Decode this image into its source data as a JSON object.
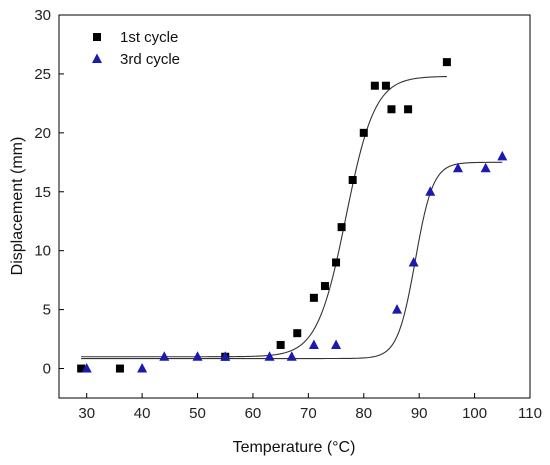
{
  "chart_data": {
    "type": "scatter",
    "title": "",
    "xlabel": "Temperature (°C)",
    "ylabel": "Displacement (mm)",
    "xlim": [
      25,
      110
    ],
    "ylim": [
      -2.5,
      30
    ],
    "xticks": [
      30,
      40,
      50,
      60,
      70,
      80,
      90,
      100,
      110
    ],
    "yticks": [
      0,
      5,
      10,
      15,
      20,
      25,
      30
    ],
    "grid": false,
    "legend_position": "top-left",
    "series": [
      {
        "name": "1st cycle",
        "marker": "square",
        "color": "#000000",
        "points": [
          [
            29,
            0
          ],
          [
            36,
            0
          ],
          [
            55,
            1
          ],
          [
            65,
            2
          ],
          [
            68,
            3
          ],
          [
            71,
            6
          ],
          [
            73,
            7
          ],
          [
            75,
            9
          ],
          [
            76,
            12
          ],
          [
            78,
            16
          ],
          [
            80,
            20
          ],
          [
            82,
            24
          ],
          [
            84,
            24
          ],
          [
            85,
            22
          ],
          [
            88,
            22
          ],
          [
            95,
            26
          ]
        ],
        "fit": {
          "model": "sigmoid",
          "bottom": 1,
          "top": 24.8,
          "x0": 76.8,
          "dx": 2.6,
          "x_range": [
            29,
            95
          ]
        }
      },
      {
        "name": "3rd cycle",
        "marker": "triangle",
        "color": "#1a1ab0",
        "points": [
          [
            30,
            0
          ],
          [
            40,
            0
          ],
          [
            44,
            1
          ],
          [
            50,
            1
          ],
          [
            55,
            1
          ],
          [
            63,
            1
          ],
          [
            67,
            1
          ],
          [
            71,
            2
          ],
          [
            75,
            2
          ],
          [
            86,
            5
          ],
          [
            89,
            9
          ],
          [
            92,
            15
          ],
          [
            97,
            17
          ],
          [
            102,
            17
          ],
          [
            105,
            18
          ]
        ],
        "fit": {
          "model": "sigmoid",
          "bottom": 0.85,
          "top": 17.5,
          "x0": 89.3,
          "dx": 1.6,
          "x_range": [
            29,
            105
          ]
        }
      }
    ]
  }
}
